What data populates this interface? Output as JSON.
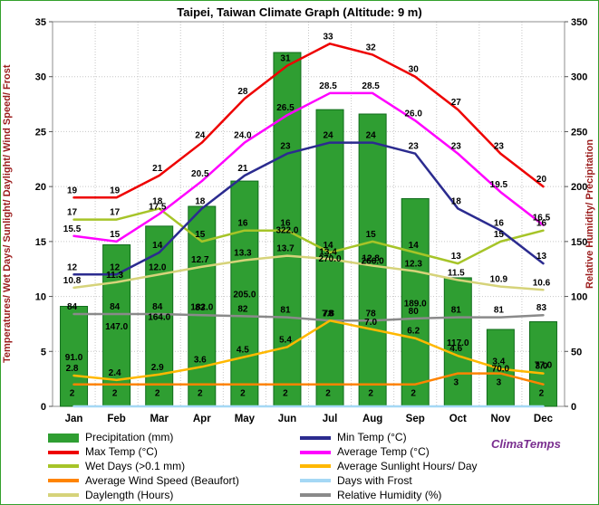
{
  "title": "Taipei, Taiwan Climate Graph (Altitude: 9 m)",
  "watermark": "ClimaTemps",
  "axes": {
    "left_title": "Temperatures/ Wet Days/ Sunlight/ Daylight/ Wind Speed/ Frost",
    "right_title": "Relative Humidity/ Precipitation",
    "left_ticks": [
      "0",
      "5",
      "10",
      "15",
      "20",
      "25",
      "30",
      "35"
    ],
    "right_ticks": [
      "0",
      "50",
      "100",
      "150",
      "200",
      "250",
      "300",
      "350"
    ]
  },
  "chart_data": {
    "type": "combo-bar-line",
    "title": "Taipei, Taiwan Climate Graph (Altitude: 9 m)",
    "categories": [
      "Jan",
      "Feb",
      "Mar",
      "Apr",
      "May",
      "Jun",
      "Jul",
      "Aug",
      "Sep",
      "Oct",
      "Nov",
      "Dec"
    ],
    "left_axis_range": [
      0,
      35
    ],
    "right_axis_range": [
      0,
      350
    ],
    "grid": true,
    "legend_position": "bottom",
    "series": [
      {
        "id": "precipitation",
        "name": "Precipitation (mm)",
        "type": "bar",
        "axis": "right",
        "color": "#2f9e32",
        "stroke": "#0f6b1a",
        "values": [
          91,
          147,
          164,
          182,
          205,
          322,
          270,
          266,
          189,
          117,
          70,
          77
        ],
        "labels": [
          "91.0",
          "147.0",
          "164.0",
          "182.0",
          "205.0",
          "322.0",
          "270.0",
          "266.0",
          "189.0",
          "117.0",
          "70.0",
          "77.0"
        ]
      },
      {
        "id": "daylength",
        "name": "Daylength (Hours)",
        "type": "line",
        "axis": "left",
        "color": "#d6d37a",
        "values": [
          10.8,
          11.3,
          12.0,
          12.7,
          13.3,
          13.7,
          13.4,
          12.8,
          12.3,
          11.5,
          10.9,
          10.6
        ],
        "labels": [
          "10.8",
          "11.3",
          "12.0",
          "12.7",
          "13.3",
          "13.7",
          "13.4",
          "12.8",
          "12.3",
          "11.5",
          "10.9",
          "10.6"
        ]
      },
      {
        "id": "humidity",
        "name": "Relative Humidity (%)",
        "type": "line",
        "axis": "right",
        "color": "#8a8a8a",
        "values": [
          84,
          84,
          84,
          83,
          82,
          81,
          78,
          78,
          80,
          81,
          81,
          83
        ],
        "labels": [
          "84",
          "84",
          "84",
          "83",
          "82",
          "81",
          "78",
          "78",
          "80",
          "81",
          "81",
          "83"
        ]
      },
      {
        "id": "frost",
        "name": "Days with Frost",
        "type": "line",
        "axis": "left",
        "color": "#a5d8f5",
        "values": [
          0,
          0,
          0,
          0,
          0,
          0,
          0,
          0,
          0,
          0,
          0,
          0
        ],
        "labels": [
          "",
          "",
          "",
          "",
          "",
          "",
          "",
          "",
          "",
          "",
          "",
          ""
        ]
      },
      {
        "id": "wind",
        "name": "Average Wind Speed (Beaufort)",
        "type": "line",
        "axis": "left",
        "color": "#ff8400",
        "values": [
          2,
          2,
          2,
          2,
          2,
          2,
          2,
          2,
          2,
          3,
          3,
          2
        ],
        "labels": [
          "2",
          "2",
          "2",
          "2",
          "2",
          "2",
          "2",
          "2",
          "2",
          "3",
          "3",
          "2"
        ]
      },
      {
        "id": "sunlight",
        "name": "Average Sunlight Hours/ Day",
        "type": "line",
        "axis": "left",
        "color": "#ffb800",
        "values": [
          2.8,
          2.4,
          2.9,
          3.6,
          4.5,
          5.4,
          7.8,
          7.0,
          6.2,
          4.6,
          3.4,
          3.0
        ],
        "labels": [
          "2.8",
          "2.4",
          "2.9",
          "3.6",
          "4.5",
          "5.4",
          "7.8",
          "7.0",
          "6.2",
          "4.6",
          "3.4",
          "3.0"
        ]
      },
      {
        "id": "wet-days",
        "name": "Wet Days (>0.1 mm)",
        "type": "line",
        "axis": "left",
        "color": "#a6c428",
        "values": [
          17,
          17,
          18,
          15,
          16,
          16,
          14,
          15,
          14,
          13,
          15,
          16
        ],
        "labels": [
          "17",
          "17",
          "18",
          "15",
          "16",
          "16",
          "14",
          "15",
          "14",
          "13",
          "15",
          "16"
        ]
      },
      {
        "id": "min-temp",
        "name": "Min Temp (°C)",
        "type": "line",
        "axis": "left",
        "color": "#2b2b8f",
        "values": [
          12,
          12,
          14,
          18,
          21,
          23,
          24,
          24,
          23,
          18,
          16,
          13
        ],
        "labels": [
          "12",
          "12",
          "14",
          "18",
          "21",
          "23",
          "24",
          "24",
          "23",
          "18",
          "16",
          "13"
        ]
      },
      {
        "id": "avg-temp",
        "name": "Average Temp (°C)",
        "type": "line",
        "axis": "left",
        "color": "#ff00ff",
        "values": [
          15.5,
          15,
          17.5,
          20.5,
          24.0,
          26.5,
          28.5,
          28.5,
          26.0,
          23,
          19.5,
          16.5
        ],
        "labels": [
          "15.5",
          "15",
          "17.5",
          "20.5",
          "24.0",
          "26.5",
          "28.5",
          "28.5",
          "26.0",
          "23",
          "19.5",
          "16.5"
        ]
      },
      {
        "id": "max-temp",
        "name": "Max Temp (°C)",
        "type": "line",
        "axis": "left",
        "color": "#ee0000",
        "values": [
          19,
          19,
          21,
          24,
          28,
          31,
          33,
          32,
          30,
          27,
          23,
          20
        ],
        "labels": [
          "19",
          "19",
          "21",
          "24",
          "28",
          "31",
          "33",
          "32",
          "30",
          "27",
          "23",
          "20"
        ]
      }
    ]
  },
  "legend": {
    "items": [
      {
        "label": "Precipitation (mm)",
        "color": "#2f9e32",
        "kind": "bar"
      },
      {
        "label": "Min Temp (°C)",
        "color": "#2b2b8f",
        "kind": "line"
      },
      {
        "label": "Max Temp (°C)",
        "color": "#ee0000",
        "kind": "line"
      },
      {
        "label": "Average Temp (°C)",
        "color": "#ff00ff",
        "kind": "line"
      },
      {
        "label": "Wet Days (>0.1 mm)",
        "color": "#a6c428",
        "kind": "line"
      },
      {
        "label": "Average Sunlight Hours/ Day",
        "color": "#ffb800",
        "kind": "line"
      },
      {
        "label": "Average Wind Speed (Beaufort)",
        "color": "#ff8400",
        "kind": "line"
      },
      {
        "label": "Days with Frost",
        "color": "#a5d8f5",
        "kind": "line"
      },
      {
        "label": "Daylength (Hours)",
        "color": "#d6d37a",
        "kind": "line"
      },
      {
        "label": "Relative Humidity (%)",
        "color": "#8a8a8a",
        "kind": "line"
      }
    ]
  }
}
